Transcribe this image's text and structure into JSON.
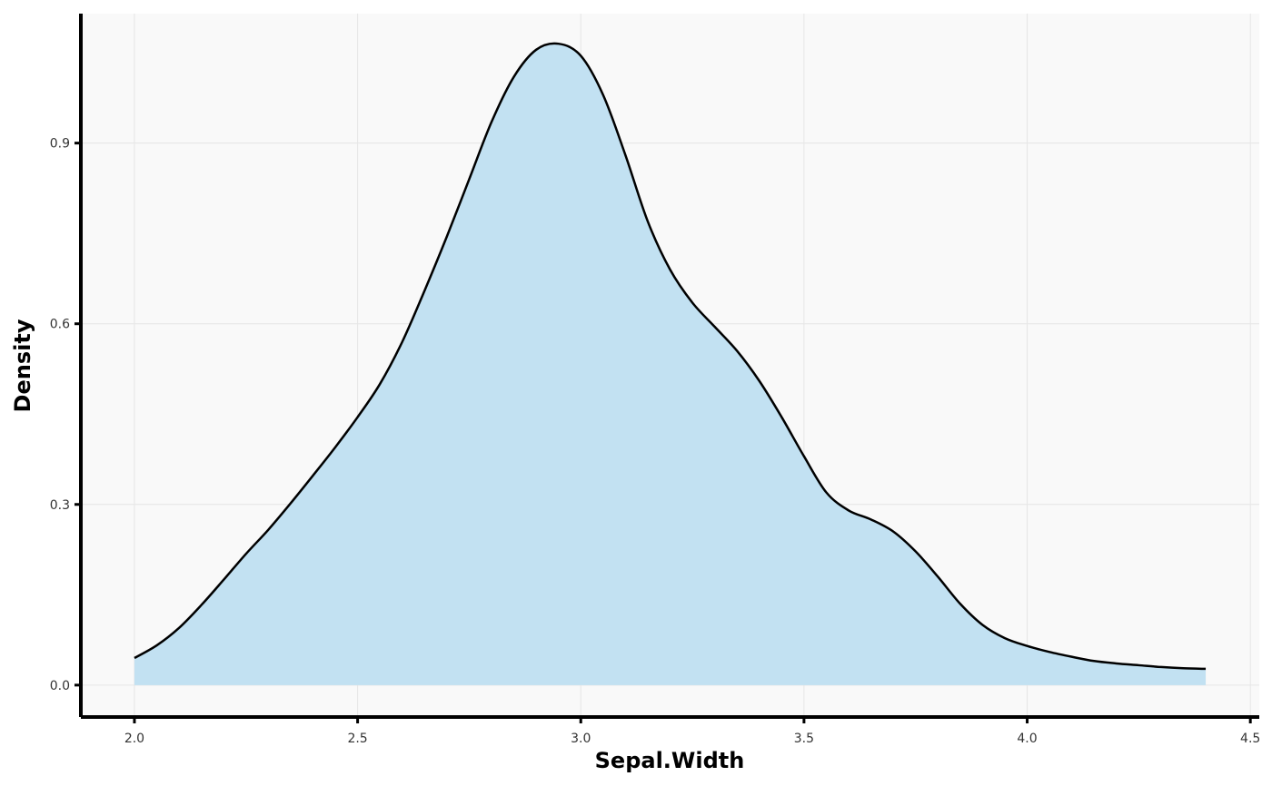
{
  "chart_data": {
    "type": "area",
    "title": "",
    "xlabel": "Sepal.Width",
    "ylabel": "Density",
    "xlim": [
      1.88,
      4.52
    ],
    "ylim": [
      -0.053,
      1.115
    ],
    "x_ticks": [
      2.0,
      2.5,
      3.0,
      3.5,
      4.0,
      4.5
    ],
    "x_tick_labels": [
      "2.0",
      "2.5",
      "3.0",
      "3.5",
      "4.0",
      "4.5"
    ],
    "y_ticks": [
      0.0,
      0.3,
      0.6,
      0.9
    ],
    "y_tick_labels": [
      "0.0",
      "0.3",
      "0.6",
      "0.9"
    ],
    "grid": true,
    "legend": "none",
    "colors": {
      "fill": "#c2e1f2",
      "line": "#000000",
      "panel": "#f9f9f9",
      "grid": "#e6e6e6"
    },
    "series": [
      {
        "x": [
          2.0,
          2.05,
          2.1,
          2.15,
          2.2,
          2.25,
          2.3,
          2.35,
          2.4,
          2.45,
          2.5,
          2.55,
          2.6,
          2.65,
          2.7,
          2.75,
          2.8,
          2.85,
          2.9,
          2.95,
          3.0,
          3.05,
          3.1,
          3.15,
          3.2,
          3.25,
          3.3,
          3.35,
          3.4,
          3.45,
          3.5,
          3.55,
          3.6,
          3.65,
          3.7,
          3.75,
          3.8,
          3.85,
          3.9,
          3.95,
          4.0,
          4.05,
          4.1,
          4.15,
          4.2,
          4.25,
          4.3,
          4.35,
          4.4
        ],
        "y": [
          0.045,
          0.066,
          0.095,
          0.133,
          0.175,
          0.218,
          0.258,
          0.302,
          0.348,
          0.395,
          0.445,
          0.5,
          0.57,
          0.655,
          0.745,
          0.84,
          0.935,
          1.01,
          1.055,
          1.065,
          1.045,
          0.98,
          0.88,
          0.77,
          0.69,
          0.635,
          0.595,
          0.555,
          0.505,
          0.445,
          0.38,
          0.32,
          0.29,
          0.275,
          0.255,
          0.222,
          0.18,
          0.135,
          0.1,
          0.078,
          0.065,
          0.055,
          0.047,
          0.04,
          0.036,
          0.033,
          0.03,
          0.028,
          0.027
        ]
      }
    ]
  }
}
